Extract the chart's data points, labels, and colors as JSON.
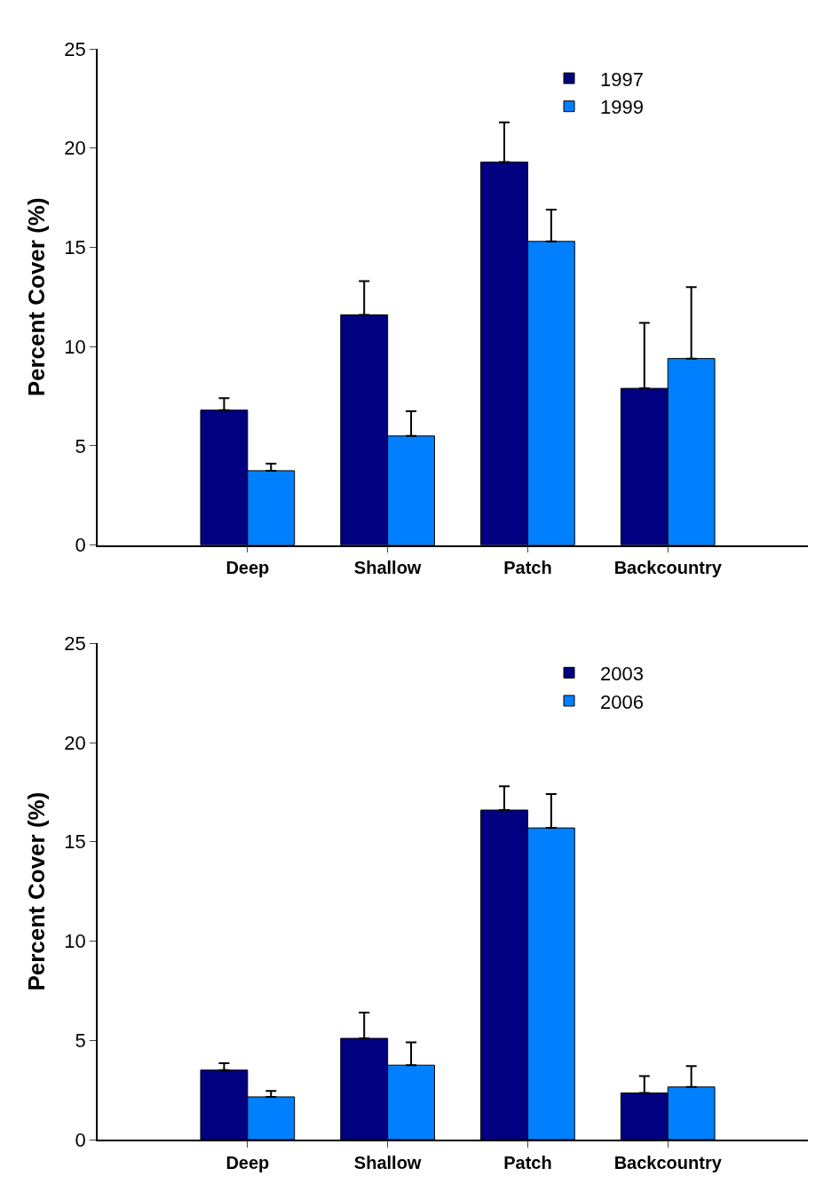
{
  "chart_data": [
    {
      "type": "bar",
      "ylabel": "Percent Cover (%)",
      "categories": [
        "Deep",
        "Shallow",
        "Patch",
        "Backcountry"
      ],
      "series": [
        {
          "name": "1997",
          "color": "#000080",
          "values": [
            6.8,
            11.6,
            19.3,
            7.9
          ],
          "errors": [
            [
              6.8,
              7.4
            ],
            [
              11.6,
              13.3
            ],
            [
              19.3,
              21.3
            ],
            [
              7.9,
              11.2
            ]
          ]
        },
        {
          "name": "1999",
          "color": "#0080ff",
          "values": [
            3.75,
            5.5,
            15.3,
            9.4
          ],
          "errors": [
            [
              3.75,
              4.1
            ],
            [
              5.5,
              6.75
            ],
            [
              15.3,
              16.9
            ],
            [
              9.4,
              13.0
            ]
          ]
        }
      ],
      "ylim": [
        0,
        25
      ],
      "yticks": [
        0,
        5,
        10,
        15,
        20,
        25
      ],
      "grid": false,
      "legend": "top right"
    },
    {
      "type": "bar",
      "ylabel": "Percent Cover (%)",
      "categories": [
        "Deep",
        "Shallow",
        "Patch",
        "Backcountry"
      ],
      "series": [
        {
          "name": "2003",
          "color": "#000080",
          "values": [
            3.5,
            5.1,
            16.6,
            2.35
          ],
          "errors": [
            [
              3.5,
              3.85
            ],
            [
              5.1,
              6.4
            ],
            [
              16.6,
              17.8
            ],
            [
              2.35,
              3.2
            ]
          ]
        },
        {
          "name": "2006",
          "color": "#0080ff",
          "values": [
            2.15,
            3.75,
            15.7,
            2.65
          ],
          "errors": [
            [
              2.15,
              2.45
            ],
            [
              3.75,
              4.9
            ],
            [
              15.7,
              17.4
            ],
            [
              2.65,
              3.7
            ]
          ]
        }
      ],
      "ylim": [
        0,
        25
      ],
      "yticks": [
        0,
        5,
        10,
        15,
        20,
        25
      ],
      "grid": false,
      "legend": "top right"
    }
  ]
}
